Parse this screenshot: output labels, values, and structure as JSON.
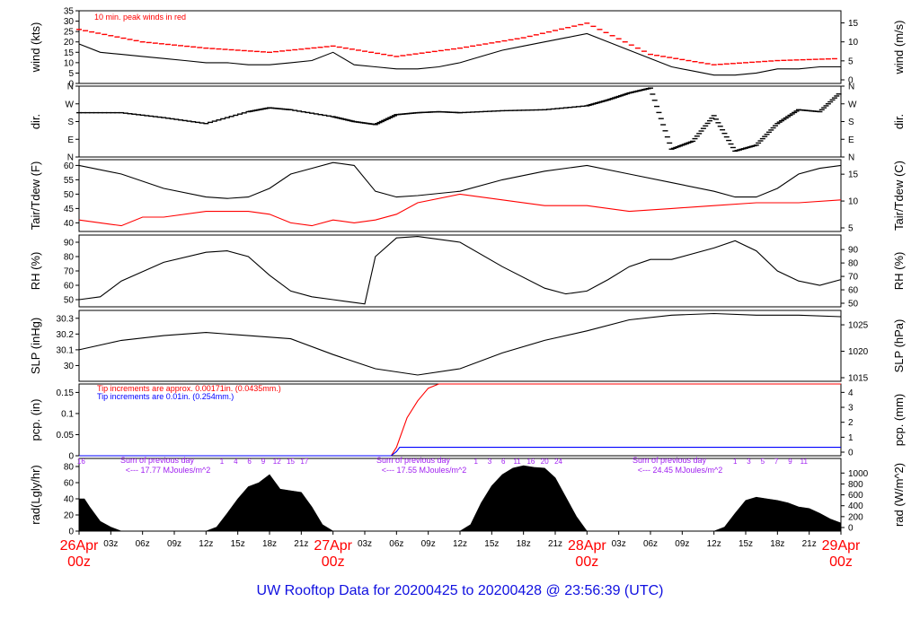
{
  "colors": {
    "frame": "#000000",
    "red": "#ff0000",
    "blue": "#0000ff",
    "purple": "#a020f0",
    "title": "#1010e0"
  },
  "footer": {
    "title": "UW Rooftop Data for 20200425  to  20200428 @ 23:56:39  (UTC)"
  },
  "chart_data": {
    "type": "line",
    "time_axis": {
      "ticks": [
        "03z",
        "06z",
        "09z",
        "12z",
        "15z",
        "18z",
        "21z",
        "03z",
        "06z",
        "09z",
        "12z",
        "15z",
        "18z",
        "21z",
        "03z",
        "06z",
        "09z",
        "12z",
        "15z",
        "18z",
        "21z"
      ],
      "day_labels": [
        {
          "date": "26Apr",
          "time": "00z"
        },
        {
          "date": "27Apr",
          "time": "00z"
        },
        {
          "date": "28Apr",
          "time": "00z"
        },
        {
          "date": "29Apr",
          "time": "00z"
        }
      ],
      "range_hours": [
        0,
        72
      ]
    },
    "panels": [
      {
        "id": "wind",
        "ylabel_left": "wind (kts)",
        "ylabel_right": "wind (m/s)",
        "ylim": [
          0,
          35
        ],
        "left_ticks": [
          0,
          5,
          10,
          15,
          20,
          25,
          30,
          35
        ],
        "right_ticks": [
          0,
          5,
          10,
          15
        ],
        "annotation": "10 min. peak winds in red",
        "series": [
          {
            "color": "red",
            "style": "dash",
            "x": [
              0,
              6,
              12,
              18,
              24,
              30,
              36,
              42,
              48,
              54,
              60,
              66,
              72
            ],
            "y": [
              26,
              20,
              17,
              15,
              18,
              13,
              17,
              22,
              29,
              14,
              9,
              11,
              12
            ]
          },
          {
            "color": "black",
            "x": [
              0,
              2,
              4,
              6,
              8,
              10,
              12,
              14,
              16,
              18,
              20,
              22,
              24,
              26,
              28,
              30,
              32,
              34,
              36,
              38,
              40,
              42,
              44,
              46,
              48,
              50,
              52,
              54,
              56,
              58,
              60,
              62,
              64,
              66,
              68,
              70,
              72
            ],
            "y": [
              19,
              15,
              14,
              13,
              12,
              11,
              10,
              10,
              9,
              9,
              10,
              11,
              15,
              9,
              8,
              7,
              7,
              8,
              10,
              13,
              16,
              18,
              20,
              22,
              24,
              20,
              16,
              12,
              8,
              6,
              4,
              4,
              5,
              7,
              7,
              8,
              8
            ]
          }
        ]
      },
      {
        "id": "dir",
        "ylabel_left": "dir.",
        "ylabel_right": "dir.",
        "ylim": [
          0,
          360
        ],
        "left_ticks": [
          "N",
          "E",
          "S",
          "W",
          "N"
        ],
        "right_ticks": [
          "N",
          "E",
          "S",
          "W",
          "N"
        ],
        "series": [
          {
            "color": "black",
            "style": "dash",
            "x": [
              0,
              4,
              8,
              12,
              16,
              18,
              20,
              24,
              26,
              28,
              30,
              32,
              34,
              36,
              40,
              44,
              48,
              50,
              52,
              54,
              56,
              58,
              60,
              62,
              64,
              66,
              68,
              70,
              72
            ],
            "y": [
              225,
              225,
              200,
              170,
              230,
              250,
              240,
              205,
              180,
              165,
              215,
              225,
              230,
              225,
              235,
              240,
              260,
              290,
              325,
              350,
              40,
              80,
              210,
              30,
              60,
              170,
              240,
              230,
              330
            ]
          }
        ]
      },
      {
        "id": "temp",
        "ylabel_left": "Tair/Tdew (F)",
        "ylabel_right": "Tair/Tdew (C)",
        "ylim": [
          37,
          62
        ],
        "left_ticks": [
          40,
          45,
          50,
          55,
          60
        ],
        "right_ticks": [
          5,
          10,
          15
        ],
        "series": [
          {
            "color": "black",
            "x": [
              0,
              4,
              8,
              12,
              14,
              16,
              18,
              20,
              22,
              24,
              26,
              28,
              30,
              32,
              36,
              40,
              44,
              48,
              52,
              56,
              60,
              62,
              64,
              66,
              68,
              70,
              72
            ],
            "y": [
              60,
              57,
              52,
              49,
              48.5,
              49,
              52,
              57,
              59,
              61,
              60,
              51,
              49,
              49.5,
              51,
              55,
              58,
              60,
              57,
              54,
              51,
              49,
              49,
              52,
              57,
              59,
              60
            ]
          },
          {
            "color": "red",
            "x": [
              0,
              2,
              4,
              6,
              8,
              12,
              16,
              18,
              20,
              22,
              24,
              26,
              28,
              30,
              32,
              36,
              40,
              44,
              48,
              52,
              56,
              60,
              64,
              68,
              72
            ],
            "y": [
              41,
              40,
              39,
              42,
              42,
              44,
              44,
              43,
              40,
              39,
              41,
              40,
              41,
              43,
              47,
              50,
              48,
              46,
              46,
              44,
              45,
              46,
              47,
              47,
              48
            ]
          }
        ]
      },
      {
        "id": "rh",
        "ylabel_left": "RH (%)",
        "ylabel_right": "RH (%)",
        "ylim": [
          45,
          95
        ],
        "left_ticks": [
          50,
          60,
          70,
          80,
          90
        ],
        "right_ticks": [
          50,
          60,
          70,
          80,
          90
        ],
        "series": [
          {
            "color": "black",
            "x": [
              0,
              2,
              4,
              8,
              12,
              14,
              16,
              18,
              20,
              22,
              24,
              26,
              27,
              28,
              30,
              32,
              36,
              40,
              44,
              46,
              48,
              50,
              52,
              54,
              56,
              60,
              62,
              64,
              66,
              68,
              70,
              72
            ],
            "y": [
              50,
              52,
              63,
              76,
              83,
              84,
              80,
              67,
              56,
              52,
              50,
              48,
              47,
              80,
              93,
              94,
              90,
              73,
              58,
              54,
              56,
              64,
              73,
              78,
              78,
              86,
              91,
              84,
              70,
              63,
              60,
              64
            ]
          }
        ]
      },
      {
        "id": "slp",
        "ylabel_left": "SLP (inHg)",
        "ylabel_right": "SLP (hPa)",
        "ylim": [
          29.9,
          30.35
        ],
        "left_ticks": [
          30.0,
          30.1,
          30.2,
          30.3
        ],
        "right_ticks": [
          1015,
          1020,
          1025
        ],
        "series": [
          {
            "color": "black",
            "x": [
              0,
              4,
              8,
              12,
              16,
              20,
              24,
              28,
              32,
              36,
              40,
              44,
              48,
              52,
              56,
              60,
              64,
              68,
              72
            ],
            "y": [
              30.1,
              30.16,
              30.19,
              30.21,
              30.19,
              30.17,
              30.07,
              29.98,
              29.94,
              29.98,
              30.08,
              30.16,
              30.22,
              30.29,
              30.32,
              30.33,
              30.32,
              30.32,
              30.31
            ]
          }
        ]
      },
      {
        "id": "pcp",
        "ylabel_left": "pcp. (in)",
        "ylabel_right": "pcp. (mm)",
        "ylim": [
          0,
          0.17
        ],
        "left_ticks": [
          0.0,
          0.05,
          0.1,
          0.15
        ],
        "right_ticks": [
          0,
          1,
          2,
          3,
          4
        ],
        "annotations": [
          "Tip increments are approx. 0.00171in. (0.0435mm.)",
          "Tip increments are 0.01in. (0.254mm.)"
        ],
        "series": [
          {
            "color": "red",
            "x": [
              0,
              29.5,
              30,
              31,
              32,
              33,
              34,
              72
            ],
            "y": [
              0,
              0,
              0.02,
              0.09,
              0.13,
              0.16,
              0.17,
              0.17
            ]
          },
          {
            "color": "blue",
            "x": [
              0,
              29.5,
              30,
              30.3,
              72
            ],
            "y": [
              0,
              0,
              0.01,
              0.02,
              0.02
            ]
          }
        ]
      },
      {
        "id": "rad",
        "ylabel_left": "rad(Lgly/hr)",
        "ylabel_right": "rad (W/m^2)",
        "ylim": [
          0,
          90
        ],
        "left_ticks": [
          0,
          20,
          40,
          60,
          80
        ],
        "right_ticks": [
          0,
          200,
          400,
          600,
          800,
          1000
        ],
        "day_sums": [
          {
            "text": "Sum of previous day",
            "value": "<--- 17.77 MJoules/m^2"
          },
          {
            "text": "Sum of previous day",
            "value": "<--- 17.55 MJoules/m^2"
          },
          {
            "text": "Sum of previous day",
            "value": "<--- 24.45 MJoules/m^2"
          }
        ],
        "hour_labels": [
          {
            "x": 0.2,
            "labels": [
              "16"
            ]
          },
          {
            "x": 13.5,
            "labels": [
              "1",
              "4",
              "6",
              "9",
              "12",
              "15",
              "17"
            ]
          },
          {
            "x": 37.5,
            "labels": [
              "1",
              "3",
              "6",
              "11",
              "16",
              "20",
              "24"
            ]
          },
          {
            "x": 62,
            "labels": [
              "1",
              "3",
              "5",
              "7",
              "9",
              "11"
            ]
          }
        ],
        "series": [
          {
            "color": "black",
            "style": "area",
            "x": [
              0,
              0.5,
              1,
              2,
              3,
              4,
              12,
              13,
              14,
              15,
              16,
              17,
              18,
              19,
              20,
              21,
              22,
              23,
              24,
              36,
              37,
              38,
              39,
              40,
              41,
              42,
              43,
              44,
              45,
              46,
              47,
              48,
              60,
              61,
              62,
              63,
              64,
              65,
              66,
              67,
              68,
              69,
              70,
              71,
              72
            ],
            "y": [
              40,
              40,
              30,
              12,
              5,
              0,
              0,
              5,
              22,
              40,
              55,
              60,
              70,
              52,
              50,
              48,
              30,
              8,
              0,
              0,
              8,
              35,
              56,
              70,
              78,
              81,
              79,
              78,
              66,
              42,
              18,
              0,
              0,
              5,
              22,
              38,
              42,
              40,
              38,
              35,
              30,
              28,
              22,
              15,
              10
            ]
          }
        ]
      }
    ]
  }
}
